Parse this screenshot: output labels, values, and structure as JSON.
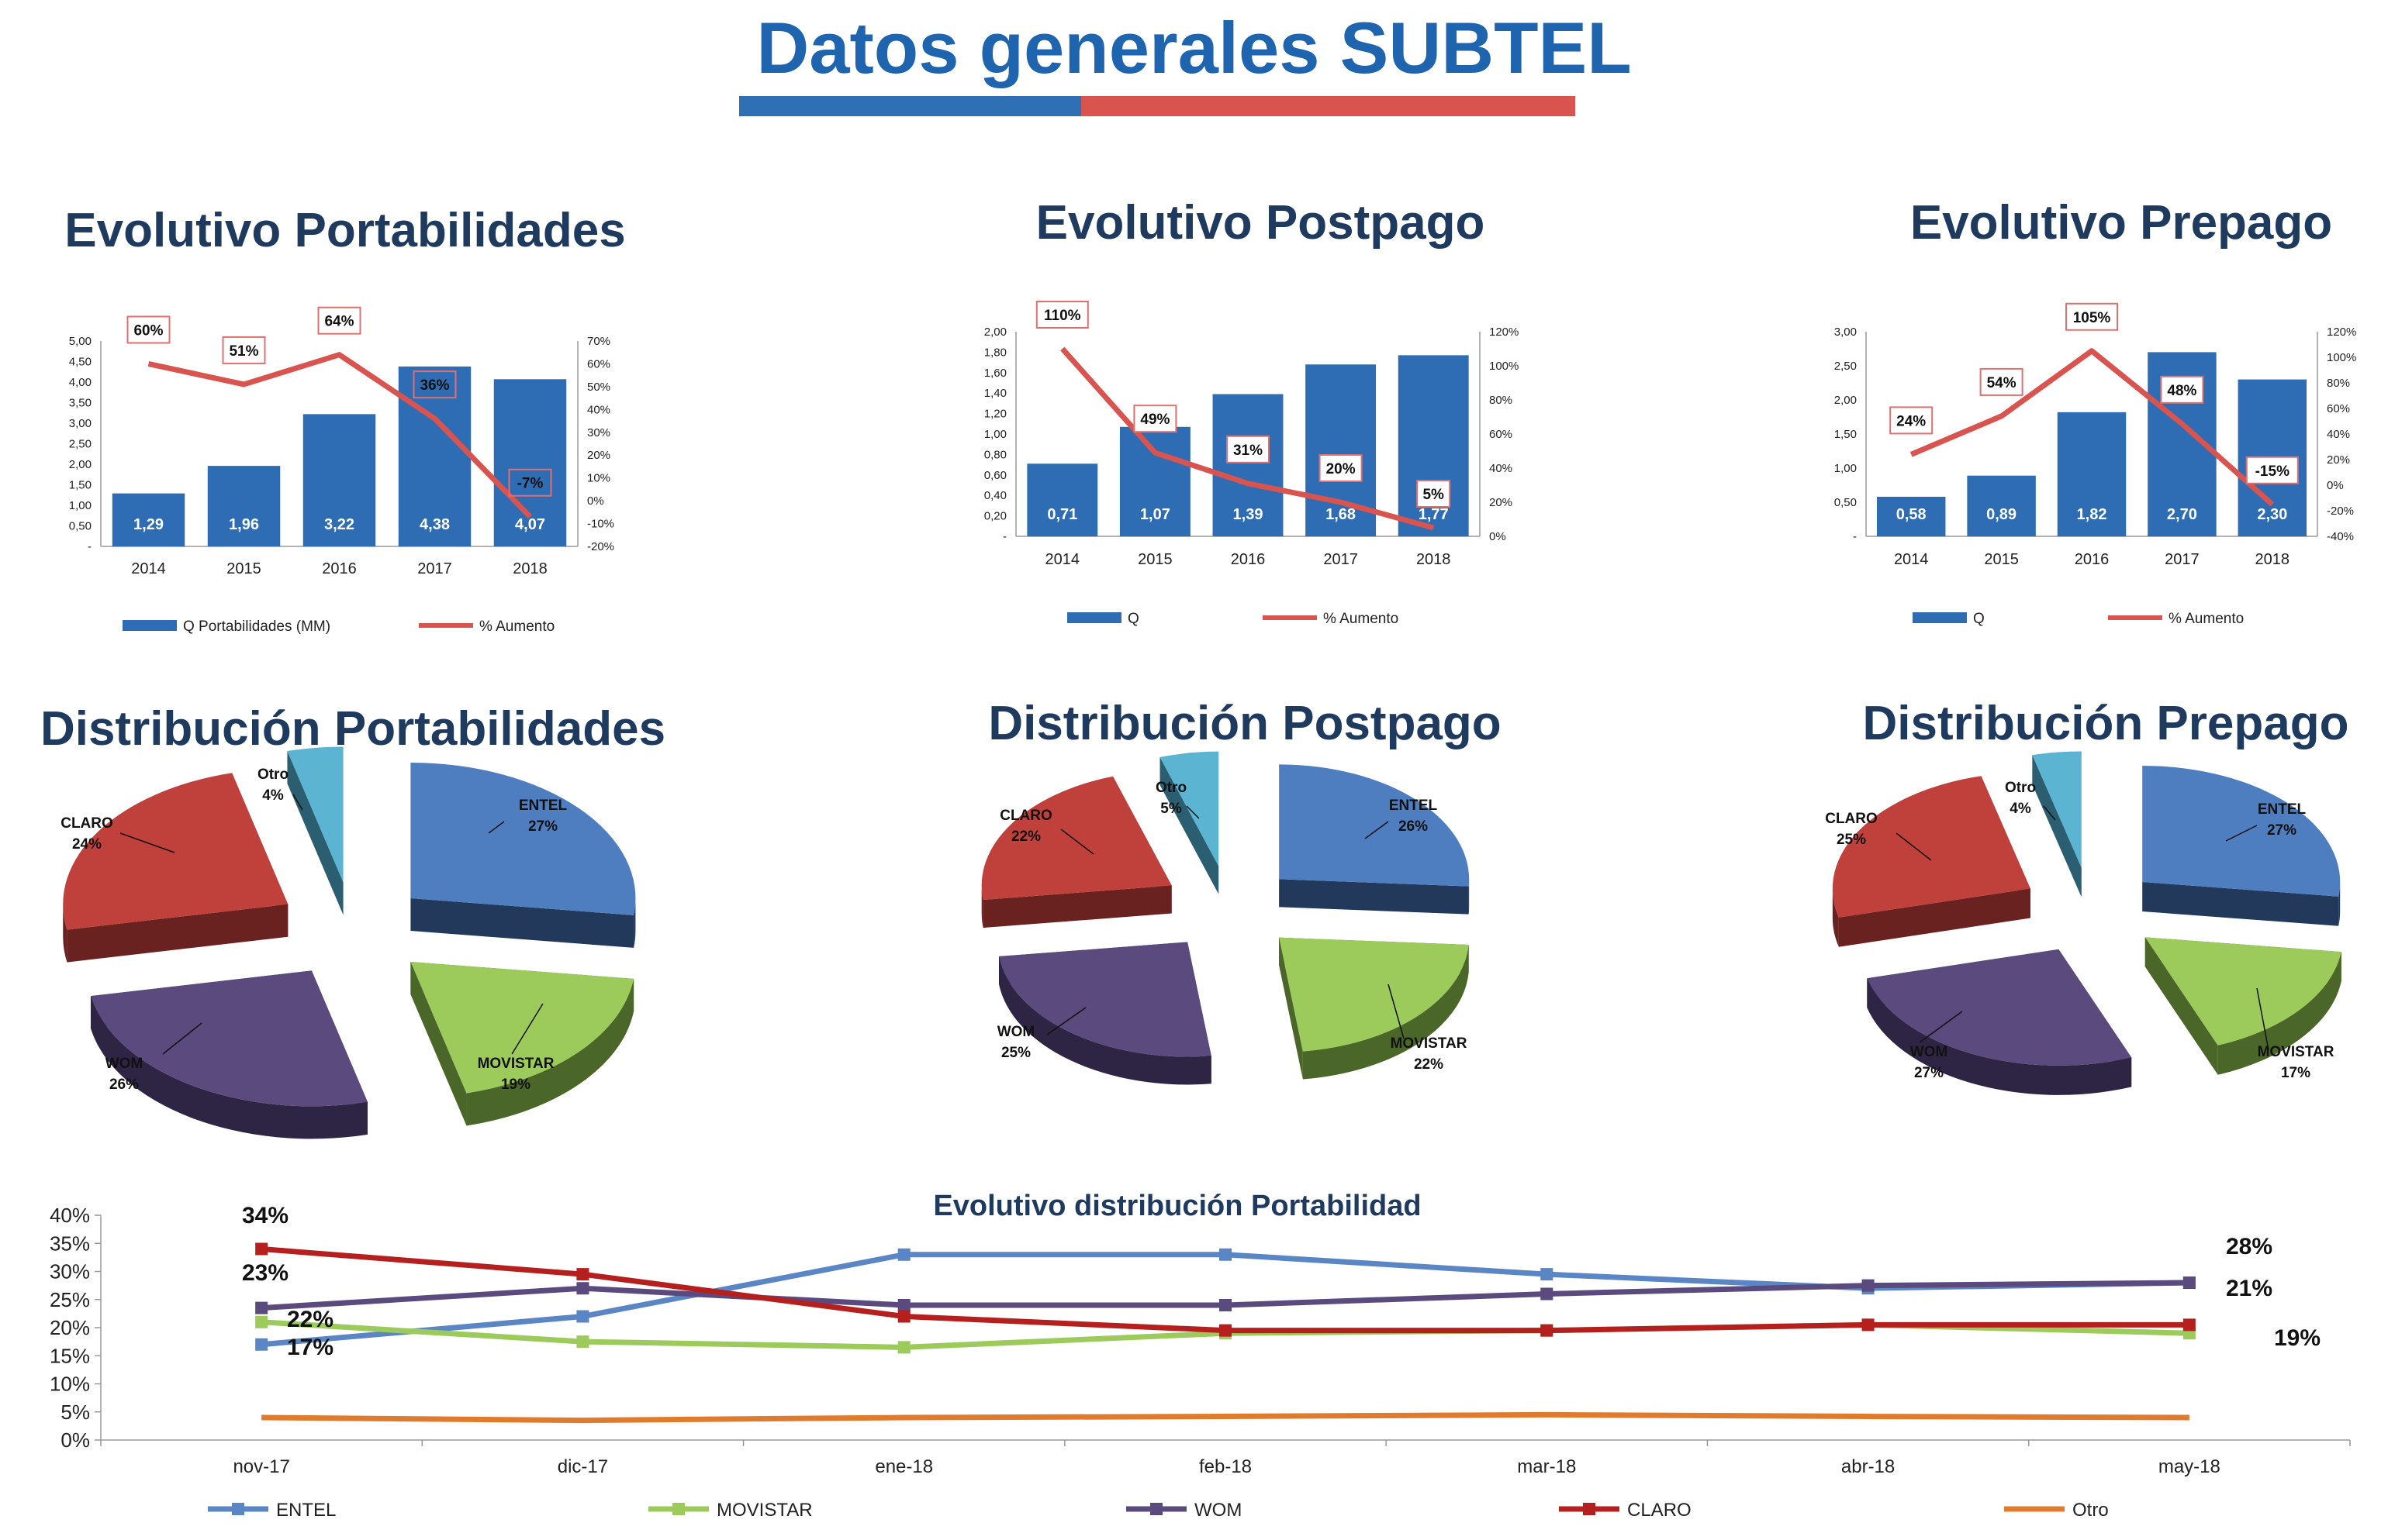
{
  "page": {
    "title": "Datos generales SUBTEL",
    "accent_blue": "#2F6FB4",
    "accent_red": "#D9534F"
  },
  "chart_data": [
    {
      "id": "evol-portabilidades",
      "type": "bar",
      "title": "Evolutivo Portabilidades",
      "categories": [
        "2014",
        "2015",
        "2016",
        "2017",
        "2018"
      ],
      "series": [
        {
          "name": "Q Portabilidades (MM)",
          "axis": "left",
          "values": [
            1.29,
            1.96,
            3.22,
            4.38,
            4.07
          ],
          "labels": [
            "1,29",
            "1,96",
            "3,22",
            "4,38",
            "4,07"
          ],
          "color": "#2E6DB4"
        },
        {
          "name": "% Aumento",
          "type": "line",
          "axis": "right",
          "values": [
            60,
            51,
            64,
            36,
            -7
          ],
          "labels": [
            "60%",
            "51%",
            "64%",
            "36%",
            "-7%"
          ],
          "color": "#D9534F"
        }
      ],
      "ylim": [
        0,
        5
      ],
      "ylim_right": [
        -20,
        70
      ],
      "yticks_left": [
        "-",
        "0,50",
        "1,00",
        "1,50",
        "2,00",
        "2,50",
        "3,00",
        "3,50",
        "4,00",
        "4,50",
        "5,00"
      ],
      "yticks_right": [
        "-20%",
        "-10%",
        "0%",
        "10%",
        "20%",
        "30%",
        "40%",
        "50%",
        "60%",
        "70%"
      ],
      "legend": "bottom"
    },
    {
      "id": "evol-postpago",
      "type": "bar",
      "title": "Evolutivo Postpago",
      "categories": [
        "2014",
        "2015",
        "2016",
        "2017",
        "2018"
      ],
      "series": [
        {
          "name": "Q",
          "axis": "left",
          "values": [
            0.71,
            1.07,
            1.39,
            1.68,
            1.77
          ],
          "labels": [
            "0,71",
            "1,07",
            "1,39",
            "1,68",
            "1,77"
          ],
          "color": "#2E6DB4"
        },
        {
          "name": "% Aumento",
          "type": "line",
          "axis": "right",
          "values": [
            110,
            49,
            31,
            20,
            5
          ],
          "labels": [
            "110%",
            "49%",
            "31%",
            "20%",
            "5%"
          ],
          "color": "#D9534F"
        }
      ],
      "ylim": [
        0,
        2
      ],
      "ylim_right": [
        0,
        120
      ],
      "yticks_left": [
        "-",
        "0,20",
        "0,40",
        "0,60",
        "0,80",
        "1,00",
        "1,20",
        "1,40",
        "1,60",
        "1,80",
        "2,00"
      ],
      "yticks_right": [
        "0%",
        "20%",
        "40%",
        "60%",
        "80%",
        "100%",
        "120%"
      ],
      "legend": "bottom"
    },
    {
      "id": "evol-prepago",
      "type": "bar",
      "title": "Evolutivo Prepago",
      "categories": [
        "2014",
        "2015",
        "2016",
        "2017",
        "2018"
      ],
      "series": [
        {
          "name": "Q",
          "axis": "left",
          "values": [
            0.58,
            0.89,
            1.82,
            2.7,
            2.3
          ],
          "labels": [
            "0,58",
            "0,89",
            "1,82",
            "2,70",
            "2,30"
          ],
          "color": "#2E6DB4"
        },
        {
          "name": "% Aumento",
          "type": "line",
          "axis": "right",
          "values": [
            24,
            54,
            105,
            48,
            -15
          ],
          "labels": [
            "24%",
            "54%",
            "105%",
            "48%",
            "-15%"
          ],
          "color": "#D9534F"
        }
      ],
      "ylim": [
        0,
        3
      ],
      "ylim_right": [
        -40,
        120
      ],
      "yticks_left": [
        "-",
        "0,50",
        "1,00",
        "1,50",
        "2,00",
        "2,50",
        "3,00"
      ],
      "yticks_right": [
        "-40%",
        "-20%",
        "0%",
        "20%",
        "40%",
        "60%",
        "80%",
        "100%",
        "120%"
      ],
      "legend": "bottom"
    },
    {
      "id": "dist-portabilidades",
      "type": "pie",
      "title": "Distribución Portabilidades",
      "slices": [
        {
          "name": "ENTEL",
          "value": 27,
          "label": "27%",
          "color": "#4F7EC0",
          "dark": "#22395C"
        },
        {
          "name": "MOVISTAR",
          "value": 19,
          "label": "19%",
          "color": "#9CCB5C",
          "dark": "#4A6628"
        },
        {
          "name": "WOM",
          "value": 26,
          "label": "26%",
          "color": "#5A4A7E",
          "dark": "#2E2545"
        },
        {
          "name": "CLARO",
          "value": 24,
          "label": "24%",
          "color": "#C0403C",
          "dark": "#6A2220"
        },
        {
          "name": "Otro",
          "value": 4,
          "label": "4%",
          "color": "#5AB4D2",
          "dark": "#2A5E70"
        }
      ]
    },
    {
      "id": "dist-postpago",
      "type": "pie",
      "title": "Distribución Postpago",
      "slices": [
        {
          "name": "ENTEL",
          "value": 26,
          "label": "26%",
          "color": "#4F7EC0",
          "dark": "#22395C"
        },
        {
          "name": "MOVISTAR",
          "value": 22,
          "label": "22%",
          "color": "#9CCB5C",
          "dark": "#4A6628"
        },
        {
          "name": "WOM",
          "value": 25,
          "label": "25%",
          "color": "#5A4A7E",
          "dark": "#2E2545"
        },
        {
          "name": "CLARO",
          "value": 22,
          "label": "22%",
          "color": "#C0403C",
          "dark": "#6A2220"
        },
        {
          "name": "Otro",
          "value": 5,
          "label": "5%",
          "color": "#5AB4D2",
          "dark": "#2A5E70"
        }
      ]
    },
    {
      "id": "dist-prepago",
      "type": "pie",
      "title": "Distribución Prepago",
      "slices": [
        {
          "name": "ENTEL",
          "value": 27,
          "label": "27%",
          "color": "#4F7EC0",
          "dark": "#22395C"
        },
        {
          "name": "MOVISTAR",
          "value": 17,
          "label": "17%",
          "color": "#9CCB5C",
          "dark": "#4A6628"
        },
        {
          "name": "WOM",
          "value": 27,
          "label": "27%",
          "color": "#5A4A7E",
          "dark": "#2E2545"
        },
        {
          "name": "CLARO",
          "value": 25,
          "label": "25%",
          "color": "#C0403C",
          "dark": "#6A2220"
        },
        {
          "name": "Otro",
          "value": 4,
          "label": "4%",
          "color": "#5AB4D2",
          "dark": "#2A5E70"
        }
      ]
    },
    {
      "id": "evol-distribucion",
      "type": "line",
      "title": "Evolutivo distribución Portabilidad",
      "categories": [
        "nov-17",
        "dic-17",
        "ene-18",
        "feb-18",
        "mar-18",
        "abr-18",
        "may-18"
      ],
      "ylim": [
        0,
        40
      ],
      "yticks": [
        "0%",
        "5%",
        "10%",
        "15%",
        "20%",
        "25%",
        "30%",
        "35%",
        "40%"
      ],
      "series": [
        {
          "name": "ENTEL",
          "color": "#5B86C5",
          "values": [
            17,
            22,
            33,
            33,
            29.5,
            27,
            28
          ]
        },
        {
          "name": "MOVISTAR",
          "color": "#9CCB5C",
          "values": [
            21,
            17.5,
            16.5,
            19,
            19.5,
            20.5,
            19
          ]
        },
        {
          "name": "WOM",
          "color": "#5A4A7E",
          "values": [
            23.5,
            27,
            24,
            24,
            26,
            27.5,
            28
          ]
        },
        {
          "name": "CLARO",
          "color": "#B5201F",
          "values": [
            34,
            29.5,
            22,
            19.5,
            19.5,
            20.5,
            20.5
          ]
        },
        {
          "name": "Otro",
          "color": "#E07B2E",
          "values": [
            4,
            3.5,
            4,
            4.2,
            4.5,
            4.2,
            4
          ]
        }
      ],
      "annotations": [
        "34%",
        "23%",
        "22%",
        "17%",
        "28%",
        "21%",
        "19%"
      ],
      "legend": "bottom"
    }
  ]
}
